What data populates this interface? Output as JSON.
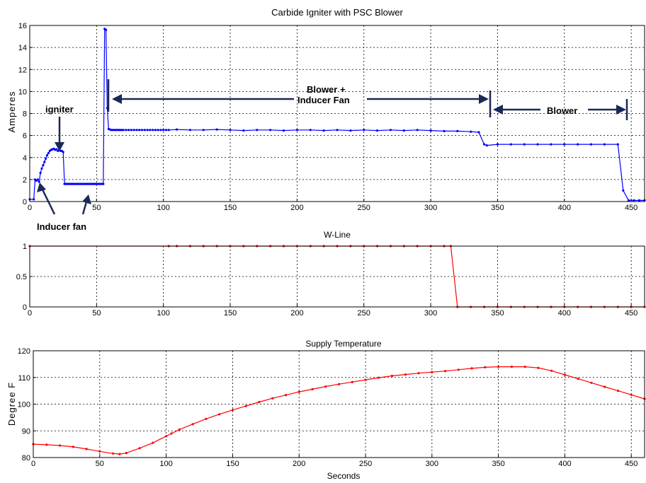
{
  "chart_data": [
    {
      "type": "line",
      "title": "Carbide Igniter with PSC Blower",
      "xlabel": "",
      "ylabel": "Amperes",
      "xlim": [
        0,
        460
      ],
      "ylim": [
        0,
        16
      ],
      "xticks": [
        0,
        50,
        100,
        150,
        200,
        250,
        300,
        350,
        400,
        450
      ],
      "yticks": [
        0,
        2,
        4,
        6,
        8,
        10,
        12,
        14,
        16
      ],
      "grid": true,
      "color": "#0000ff",
      "series": [
        {
          "x": [
            0,
            3,
            4,
            5,
            6,
            7,
            8,
            9,
            10,
            11,
            12,
            13,
            14,
            15,
            16,
            17,
            18,
            19,
            20,
            21,
            22,
            23,
            24,
            25,
            26,
            27,
            28,
            29,
            30,
            31,
            32,
            33,
            34,
            35,
            36,
            37,
            38,
            39,
            40,
            41,
            42,
            43,
            44,
            45,
            46,
            47,
            48,
            49,
            50,
            51,
            52,
            53,
            54,
            55,
            56,
            57,
            58,
            59,
            60,
            61,
            62,
            63,
            64,
            65,
            66,
            67,
            68,
            69,
            70,
            72,
            74,
            76,
            78,
            80,
            82,
            84,
            86,
            88,
            90,
            92,
            94,
            96,
            98,
            100,
            102,
            104,
            110,
            120,
            130,
            140,
            150,
            160,
            170,
            180,
            190,
            200,
            210,
            220,
            230,
            240,
            250,
            260,
            270,
            280,
            290,
            300,
            310,
            320,
            330,
            336,
            340,
            342,
            350,
            360,
            370,
            380,
            390,
            400,
            410,
            420,
            430,
            440,
            444,
            448,
            452,
            456,
            460
          ],
          "y": [
            0.2,
            0.2,
            2.0,
            1.9,
            2.0,
            1.8,
            2.6,
            3.0,
            3.3,
            3.6,
            3.9,
            4.2,
            4.4,
            4.6,
            4.7,
            4.75,
            4.8,
            4.7,
            4.75,
            4.6,
            4.7,
            4.6,
            4.6,
            4.5,
            1.6,
            1.6,
            1.6,
            1.6,
            1.6,
            1.6,
            1.6,
            1.6,
            1.6,
            1.6,
            1.6,
            1.6,
            1.6,
            1.6,
            1.6,
            1.6,
            1.6,
            1.6,
            1.6,
            1.6,
            1.6,
            1.6,
            1.6,
            1.6,
            1.6,
            1.6,
            1.6,
            1.6,
            1.6,
            1.6,
            15.7,
            15.6,
            8.5,
            6.6,
            6.55,
            6.5,
            6.5,
            6.5,
            6.5,
            6.5,
            6.5,
            6.5,
            6.5,
            6.5,
            6.5,
            6.5,
            6.5,
            6.5,
            6.5,
            6.5,
            6.5,
            6.5,
            6.5,
            6.5,
            6.5,
            6.5,
            6.5,
            6.5,
            6.5,
            6.5,
            6.5,
            6.5,
            6.55,
            6.5,
            6.5,
            6.55,
            6.5,
            6.45,
            6.5,
            6.5,
            6.45,
            6.5,
            6.5,
            6.45,
            6.5,
            6.45,
            6.5,
            6.45,
            6.5,
            6.45,
            6.5,
            6.45,
            6.4,
            6.4,
            6.35,
            6.3,
            5.2,
            5.1,
            5.2,
            5.2,
            5.2,
            5.2,
            5.2,
            5.2,
            5.2,
            5.2,
            5.2,
            5.2,
            1.0,
            0.1,
            0.1,
            0.1,
            0.1
          ]
        }
      ],
      "annotations": {
        "igniter": "igniter",
        "inducer_fan": "Inducer fan",
        "blower_inducer_line1": "Blower +",
        "blower_inducer_line2": "Inducer Fan",
        "blower": "Blower"
      }
    },
    {
      "type": "line",
      "title": "W-Line",
      "xlabel": "",
      "ylabel": "",
      "xlim": [
        0,
        460
      ],
      "ylim": [
        0,
        1
      ],
      "xticks": [
        0,
        50,
        100,
        150,
        200,
        250,
        300,
        350,
        400,
        450
      ],
      "yticks": [
        0,
        0.5,
        1
      ],
      "grid": true,
      "color": "#ff0000",
      "series": [
        {
          "x": [
            0,
            104,
            110,
            120,
            130,
            140,
            150,
            160,
            170,
            180,
            190,
            200,
            210,
            220,
            230,
            240,
            250,
            260,
            270,
            280,
            290,
            300,
            310,
            315,
            320,
            330,
            340,
            350,
            360,
            370,
            380,
            390,
            400,
            410,
            420,
            430,
            440,
            450,
            460
          ],
          "y": [
            1,
            1,
            1,
            1,
            1,
            1,
            1,
            1,
            1,
            1,
            1,
            1,
            1,
            1,
            1,
            1,
            1,
            1,
            1,
            1,
            1,
            1,
            1,
            1,
            0,
            0,
            0,
            0,
            0,
            0,
            0,
            0,
            0,
            0,
            0,
            0,
            0,
            0,
            0
          ]
        }
      ]
    },
    {
      "type": "line",
      "title": "Supply Temperature",
      "xlabel": "Seconds",
      "ylabel": "Degree F",
      "xlim": [
        0,
        460
      ],
      "ylim": [
        80,
        120
      ],
      "xticks": [
        0,
        50,
        100,
        150,
        200,
        250,
        300,
        350,
        400,
        450
      ],
      "yticks": [
        80,
        90,
        100,
        110,
        120
      ],
      "grid": true,
      "color": "#ff0000",
      "series": [
        {
          "x": [
            0,
            10,
            20,
            30,
            40,
            50,
            60,
            65,
            70,
            80,
            90,
            100,
            104,
            110,
            120,
            130,
            140,
            150,
            160,
            170,
            180,
            190,
            200,
            210,
            220,
            230,
            240,
            250,
            260,
            270,
            280,
            290,
            300,
            310,
            320,
            330,
            340,
            350,
            360,
            370,
            380,
            390,
            400,
            410,
            420,
            430,
            440,
            450,
            460
          ],
          "y": [
            85,
            84.8,
            84.5,
            84,
            83.2,
            82.3,
            81.5,
            81.3,
            81.7,
            83.5,
            85.5,
            88,
            89,
            90.5,
            92.5,
            94.5,
            96.2,
            97.8,
            99.3,
            100.8,
            102.2,
            103.4,
            104.6,
            105.6,
            106.6,
            107.5,
            108.3,
            109.1,
            109.9,
            110.6,
            111.1,
            111.6,
            112,
            112.4,
            112.9,
            113.4,
            113.8,
            114,
            114,
            114,
            113.6,
            112.5,
            111,
            109.5,
            108,
            106.5,
            105,
            103.5,
            102
          ]
        }
      ]
    }
  ]
}
